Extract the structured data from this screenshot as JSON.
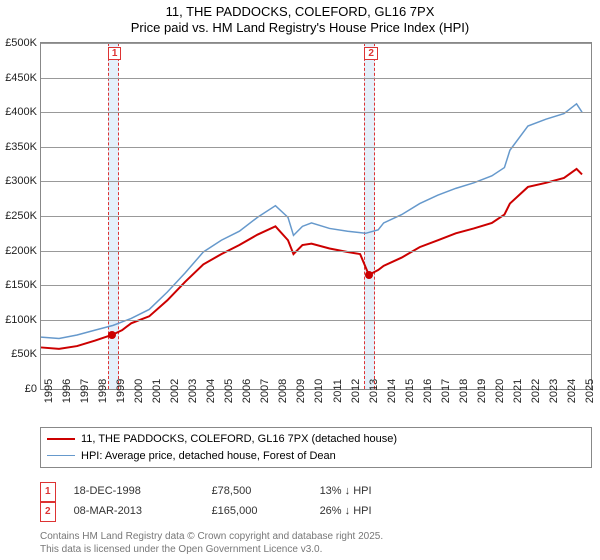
{
  "title_line1": "11, THE PADDOCKS, COLEFORD, GL16 7PX",
  "title_line2": "Price paid vs. HM Land Registry's House Price Index (HPI)",
  "chart": {
    "type": "line",
    "x_min": 1995,
    "x_max": 2025.5,
    "y_min": 0,
    "y_max": 500000,
    "y_ticks": [
      0,
      50000,
      100000,
      150000,
      200000,
      250000,
      300000,
      350000,
      400000,
      450000,
      500000
    ],
    "y_tick_labels": [
      "£0",
      "£50K",
      "£100K",
      "£150K",
      "£200K",
      "£250K",
      "£300K",
      "£350K",
      "£400K",
      "£450K",
      "£500K"
    ],
    "x_ticks": [
      1995,
      1996,
      1997,
      1998,
      1999,
      2000,
      2001,
      2002,
      2003,
      2004,
      2005,
      2006,
      2007,
      2008,
      2009,
      2010,
      2011,
      2012,
      2013,
      2014,
      2015,
      2016,
      2017,
      2018,
      2019,
      2020,
      2021,
      2022,
      2023,
      2024,
      2025
    ],
    "grid_color": "#999999",
    "background": "#ffffff",
    "series": [
      {
        "name": "price_paid",
        "label": "11, THE PADDOCKS, COLEFORD, GL16 7PX (detached house)",
        "color": "#cc0000",
        "width": 2,
        "data": [
          [
            1995,
            60000
          ],
          [
            1996,
            58000
          ],
          [
            1997,
            62000
          ],
          [
            1998,
            70000
          ],
          [
            1998.96,
            78500
          ],
          [
            1999.5,
            85000
          ],
          [
            2000,
            95000
          ],
          [
            2001,
            105000
          ],
          [
            2002,
            128000
          ],
          [
            2003,
            155000
          ],
          [
            2004,
            180000
          ],
          [
            2005,
            195000
          ],
          [
            2006,
            208000
          ],
          [
            2007,
            223000
          ],
          [
            2008,
            235000
          ],
          [
            2008.7,
            215000
          ],
          [
            2009,
            195000
          ],
          [
            2009.5,
            208000
          ],
          [
            2010,
            210000
          ],
          [
            2011,
            203000
          ],
          [
            2012,
            198000
          ],
          [
            2012.7,
            195000
          ],
          [
            2013.18,
            165000
          ],
          [
            2013.7,
            172000
          ],
          [
            2014,
            178000
          ],
          [
            2015,
            190000
          ],
          [
            2016,
            205000
          ],
          [
            2017,
            215000
          ],
          [
            2018,
            225000
          ],
          [
            2019,
            232000
          ],
          [
            2020,
            240000
          ],
          [
            2020.7,
            252000
          ],
          [
            2021,
            268000
          ],
          [
            2022,
            292000
          ],
          [
            2023,
            298000
          ],
          [
            2024,
            305000
          ],
          [
            2024.7,
            318000
          ],
          [
            2025,
            310000
          ]
        ]
      },
      {
        "name": "hpi",
        "label": "HPI: Average price, detached house, Forest of Dean",
        "color": "#6699cc",
        "width": 1.5,
        "data": [
          [
            1995,
            75000
          ],
          [
            1996,
            73000
          ],
          [
            1997,
            78000
          ],
          [
            1998,
            85000
          ],
          [
            1999,
            92000
          ],
          [
            2000,
            102000
          ],
          [
            2001,
            115000
          ],
          [
            2002,
            140000
          ],
          [
            2003,
            168000
          ],
          [
            2004,
            198000
          ],
          [
            2005,
            215000
          ],
          [
            2006,
            228000
          ],
          [
            2007,
            248000
          ],
          [
            2008,
            265000
          ],
          [
            2008.7,
            248000
          ],
          [
            2009,
            222000
          ],
          [
            2009.5,
            235000
          ],
          [
            2010,
            240000
          ],
          [
            2011,
            232000
          ],
          [
            2012,
            228000
          ],
          [
            2013,
            225000
          ],
          [
            2013.7,
            230000
          ],
          [
            2014,
            240000
          ],
          [
            2015,
            252000
          ],
          [
            2016,
            268000
          ],
          [
            2017,
            280000
          ],
          [
            2018,
            290000
          ],
          [
            2019,
            298000
          ],
          [
            2020,
            308000
          ],
          [
            2020.7,
            320000
          ],
          [
            2021,
            345000
          ],
          [
            2022,
            380000
          ],
          [
            2023,
            390000
          ],
          [
            2024,
            398000
          ],
          [
            2024.7,
            412000
          ],
          [
            2025,
            400000
          ]
        ]
      }
    ],
    "markers": [
      {
        "n": "1",
        "x": 1998.96,
        "y": 78500
      },
      {
        "n": "2",
        "x": 2013.18,
        "y": 165000
      }
    ],
    "marker_band_width_years": 0.5,
    "marker_color": "#d33333"
  },
  "legend": {
    "items": [
      {
        "color": "#cc0000",
        "width": 2,
        "label": "11, THE PADDOCKS, COLEFORD, GL16 7PX (detached house)"
      },
      {
        "color": "#6699cc",
        "width": 1.5,
        "label": "HPI: Average price, detached house, Forest of Dean"
      }
    ]
  },
  "sales": [
    {
      "n": "1",
      "date": "18-DEC-1998",
      "price": "£78,500",
      "diff": "13% ↓ HPI"
    },
    {
      "n": "2",
      "date": "08-MAR-2013",
      "price": "£165,000",
      "diff": "26% ↓ HPI"
    }
  ],
  "footer_line1": "Contains HM Land Registry data © Crown copyright and database right 2025.",
  "footer_line2": "This data is licensed under the Open Government Licence v3.0."
}
